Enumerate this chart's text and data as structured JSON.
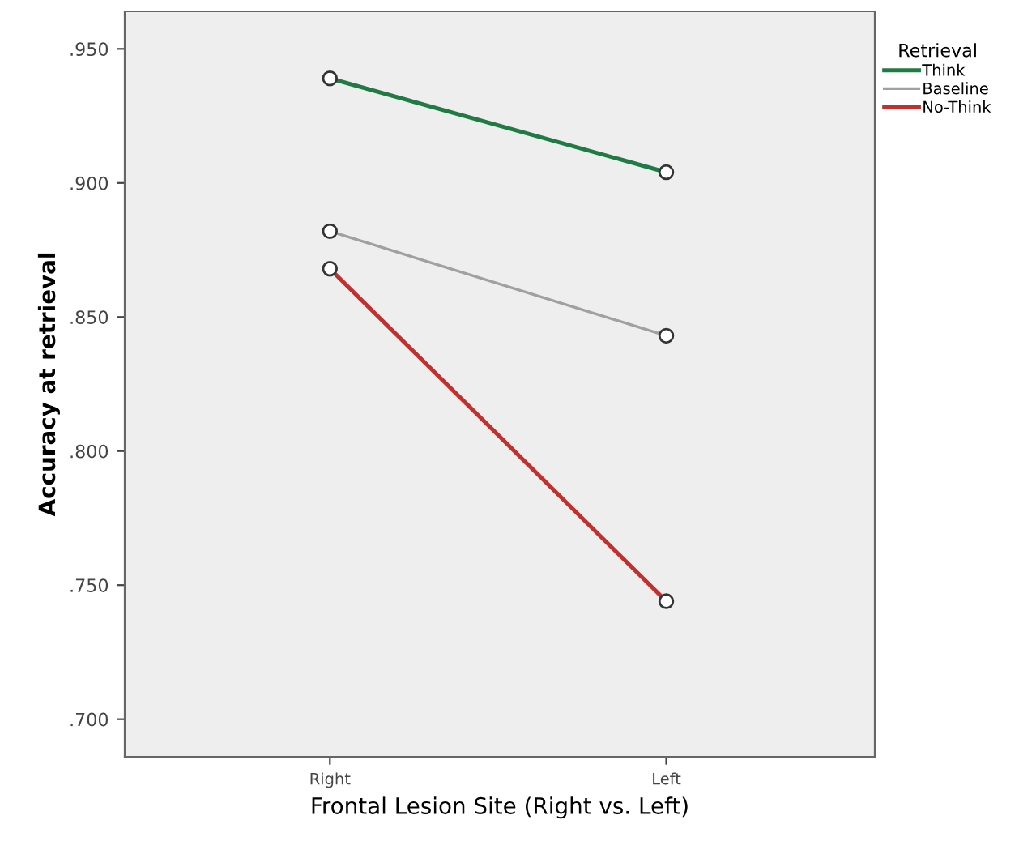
{
  "chart_data": {
    "type": "line",
    "xlabel": "Frontal Lesion Site (Right vs. Left)",
    "ylabel": "Accuracy at retrieval",
    "legend_title": "Retrieval",
    "legend": "top right",
    "marker": "circle",
    "line_style": "solid",
    "grid": false,
    "categories": [
      "Right",
      "Left"
    ],
    "series": [
      {
        "name": "Think",
        "color": "#1f7a44",
        "values": [
          0.939,
          0.904
        ]
      },
      {
        "name": "Baseline",
        "color": "#a0a0a0",
        "values": [
          0.882,
          0.843
        ]
      },
      {
        "name": "No-Think",
        "color": "#c0302e",
        "values": [
          0.868,
          0.744
        ]
      }
    ],
    "ylim": [
      0.686,
      0.964
    ],
    "yticks": [
      {
        "value": 0.7,
        "label": ".700"
      },
      {
        "value": 0.75,
        "label": ".750"
      },
      {
        "value": 0.8,
        "label": ".800"
      },
      {
        "value": 0.85,
        "label": ".850"
      },
      {
        "value": 0.9,
        "label": ".900"
      },
      {
        "value": 0.95,
        "label": ".950"
      }
    ]
  }
}
